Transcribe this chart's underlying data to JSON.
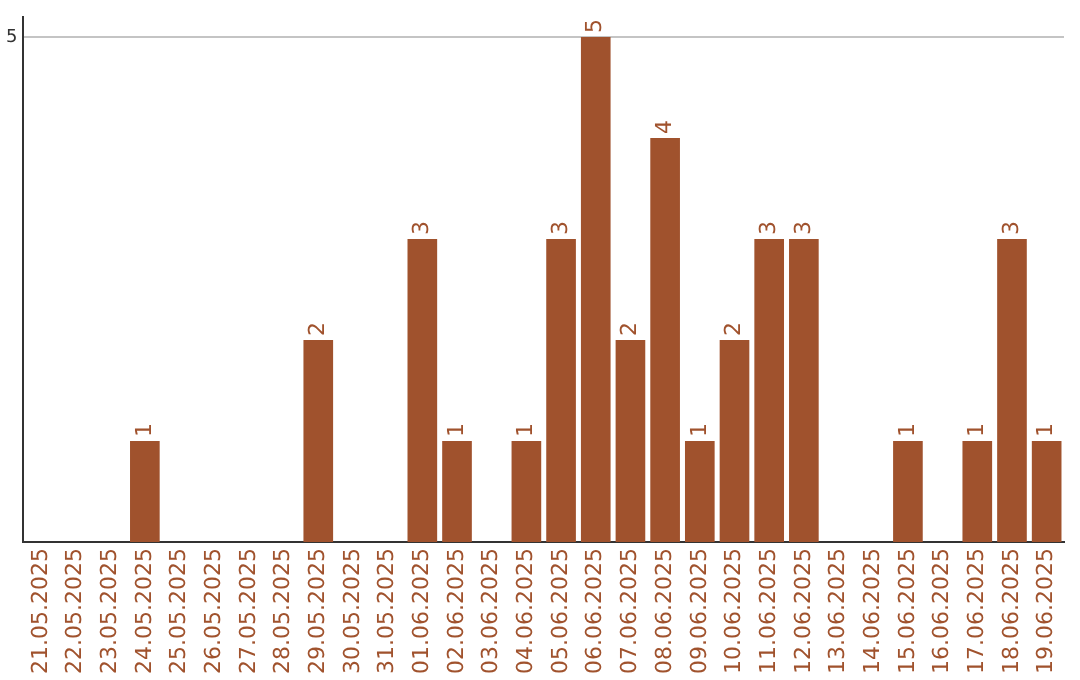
{
  "chart_data": {
    "type": "bar",
    "categories": [
      "21.05.2025",
      "22.05.2025",
      "23.05.2025",
      "24.05.2025",
      "25.05.2025",
      "26.05.2025",
      "27.05.2025",
      "28.05.2025",
      "29.05.2025",
      "30.05.2025",
      "31.05.2025",
      "01.06.2025",
      "02.06.2025",
      "03.06.2025",
      "04.06.2025",
      "05.06.2025",
      "06.06.2025",
      "07.06.2025",
      "08.06.2025",
      "09.06.2025",
      "10.06.2025",
      "11.06.2025",
      "12.06.2025",
      "13.06.2025",
      "14.06.2025",
      "15.06.2025",
      "16.06.2025",
      "17.06.2025",
      "18.06.2025",
      "19.06.2025"
    ],
    "values": [
      0,
      0,
      0,
      1,
      0,
      0,
      0,
      0,
      2,
      0,
      0,
      3,
      1,
      0,
      1,
      3,
      5,
      2,
      4,
      1,
      2,
      3,
      3,
      0,
      0,
      1,
      0,
      1,
      3,
      1
    ],
    "value_labels": [
      null,
      null,
      null,
      "1",
      null,
      null,
      null,
      null,
      "2",
      null,
      null,
      "3",
      "1",
      null,
      "1",
      "3",
      "5",
      "2",
      "4",
      "1",
      "2",
      "3",
      "3",
      null,
      null,
      "1",
      null,
      "1",
      "3",
      "1"
    ],
    "color": "#a0522d",
    "ylim": [
      0,
      5.2
    ],
    "yticks": [
      5
    ],
    "grid": "y",
    "legend": false
  }
}
